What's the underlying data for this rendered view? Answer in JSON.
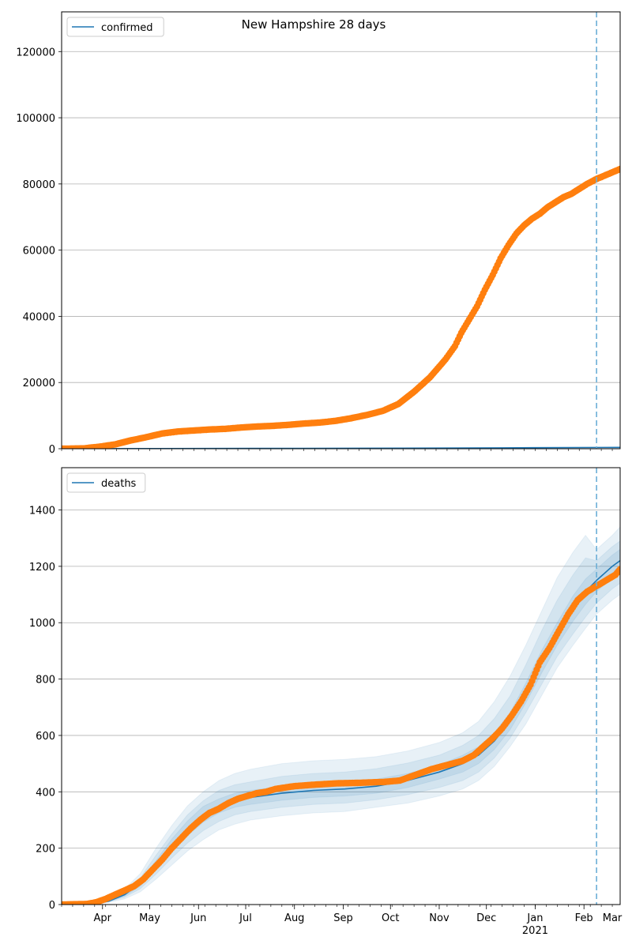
{
  "title": "New Hampshire 28 days",
  "colors": {
    "model": "#1f77b4",
    "observed": "#ff7f0e",
    "band": "#c6dbef",
    "grid": "#b0b0b0",
    "forecast_line": "#6baed6"
  },
  "chart_data": [
    {
      "type": "line",
      "id": "confirmed",
      "legend": "confirmed",
      "legend_position": "top-left",
      "ylim": [
        0,
        132000
      ],
      "yticks": [
        0,
        20000,
        40000,
        60000,
        80000,
        100000,
        120000
      ],
      "xlim": [
        0,
        355
      ],
      "xlabels_shown": false,
      "forecast_start_day": 340,
      "model_line": {
        "x": [
          0,
          60,
          120,
          180,
          240,
          300,
          355
        ],
        "y": [
          0,
          50,
          100,
          150,
          200,
          300,
          400
        ]
      },
      "observed": {
        "x": [
          0,
          14,
          24,
          34,
          44,
          54,
          64,
          74,
          84,
          94,
          104,
          114,
          124,
          134,
          144,
          154,
          164,
          174,
          184,
          194,
          204,
          214,
          224,
          234,
          244,
          250,
          254,
          259,
          264,
          269,
          274,
          279,
          284,
          289,
          294,
          299,
          304,
          309,
          314,
          319,
          324,
          329,
          334,
          340,
          345,
          350,
          355
        ],
        "y": [
          0,
          100,
          600,
          1300,
          2500,
          3500,
          4600,
          5200,
          5500,
          5800,
          6000,
          6400,
          6700,
          6900,
          7200,
          7600,
          7900,
          8400,
          9200,
          10200,
          11400,
          13500,
          17200,
          21500,
          27000,
          31000,
          35000,
          39000,
          43000,
          48000,
          52500,
          57500,
          61500,
          65000,
          67500,
          69500,
          71000,
          73000,
          74500,
          76000,
          77000,
          78500,
          80000,
          81500,
          82500,
          83500,
          84500
        ]
      }
    },
    {
      "type": "line",
      "id": "deaths",
      "legend": "deaths",
      "legend_position": "top-left",
      "ylim": [
        0,
        1550
      ],
      "yticks": [
        0,
        200,
        400,
        600,
        800,
        1000,
        1200,
        1400
      ],
      "xlim": [
        0,
        355
      ],
      "xtick_labels": [
        {
          "day": 26,
          "label": "Apr"
        },
        {
          "day": 56,
          "label": "May"
        },
        {
          "day": 87,
          "label": "Jun"
        },
        {
          "day": 117,
          "label": "Jul"
        },
        {
          "day": 148,
          "label": "Aug"
        },
        {
          "day": 179,
          "label": "Sep"
        },
        {
          "day": 209,
          "label": "Oct"
        },
        {
          "day": 240,
          "label": "Nov"
        },
        {
          "day": 270,
          "label": "Dec"
        },
        {
          "day": 301,
          "label": "Jan"
        },
        {
          "day": 332,
          "label": "Feb"
        },
        {
          "day": 360,
          "label": "Mar"
        }
      ],
      "year_label": {
        "day": 301,
        "label": "2021"
      },
      "forecast_start_day": 340,
      "model_line": {
        "x": [
          0,
          20,
          30,
          40,
          50,
          60,
          70,
          80,
          90,
          100,
          110,
          120,
          140,
          160,
          180,
          200,
          220,
          240,
          255,
          265,
          275,
          285,
          295,
          305,
          315,
          325,
          333,
          340,
          350,
          355
        ],
        "y": [
          0,
          2,
          12,
          35,
          75,
          140,
          210,
          270,
          320,
          350,
          370,
          380,
          395,
          405,
          410,
          420,
          440,
          470,
          500,
          530,
          580,
          650,
          750,
          860,
          960,
          1050,
          1110,
          1150,
          1200,
          1220
        ]
      },
      "model_bands": [
        {
          "x": [
            0,
            20,
            30,
            40,
            50,
            60,
            70,
            80,
            90,
            100,
            110,
            120,
            140,
            160,
            180,
            200,
            220,
            240,
            255,
            265,
            275,
            285,
            295,
            305,
            315,
            325,
            333,
            340,
            350,
            355
          ],
          "low": [
            0,
            0,
            8,
            20,
            45,
            90,
            140,
            190,
            230,
            265,
            285,
            300,
            315,
            325,
            330,
            345,
            360,
            385,
            410,
            440,
            490,
            560,
            640,
            740,
            840,
            920,
            980,
            1030,
            1080,
            1100
          ],
          "high": [
            0,
            4,
            20,
            55,
            110,
            200,
            280,
            350,
            400,
            440,
            465,
            480,
            500,
            510,
            515,
            525,
            545,
            575,
            610,
            650,
            720,
            810,
            920,
            1040,
            1160,
            1250,
            1310,
            1260,
            1310,
            1340
          ]
        },
        {
          "x": [
            0,
            20,
            30,
            40,
            50,
            60,
            70,
            80,
            90,
            100,
            110,
            120,
            140,
            160,
            180,
            200,
            220,
            240,
            255,
            265,
            275,
            285,
            295,
            305,
            315,
            325,
            333,
            340,
            350,
            355
          ],
          "low": [
            0,
            1,
            10,
            26,
            56,
            108,
            165,
            218,
            262,
            295,
            318,
            330,
            345,
            355,
            360,
            372,
            390,
            415,
            440,
            470,
            520,
            590,
            680,
            780,
            880,
            960,
            1020,
            1070,
            1120,
            1140
          ],
          "high": [
            0,
            3,
            16,
            46,
            95,
            175,
            250,
            318,
            368,
            405,
            425,
            435,
            455,
            465,
            470,
            482,
            502,
            530,
            565,
            600,
            660,
            740,
            850,
            970,
            1080,
            1170,
            1230,
            1220,
            1270,
            1290
          ]
        },
        {
          "x": [
            0,
            20,
            30,
            40,
            50,
            60,
            70,
            80,
            90,
            100,
            110,
            120,
            140,
            160,
            180,
            200,
            220,
            240,
            255,
            265,
            275,
            285,
            295,
            305,
            315,
            325,
            333,
            340,
            350,
            355
          ],
          "low": [
            0,
            1,
            11,
            30,
            65,
            124,
            188,
            244,
            292,
            325,
            345,
            355,
            370,
            380,
            385,
            395,
            415,
            445,
            470,
            500,
            550,
            620,
            715,
            820,
            920,
            1005,
            1065,
            1110,
            1160,
            1180
          ],
          "high": [
            0,
            3,
            14,
            40,
            85,
            156,
            232,
            296,
            348,
            375,
            395,
            405,
            420,
            430,
            435,
            445,
            465,
            495,
            530,
            560,
            610,
            680,
            785,
            900,
            1000,
            1095,
            1155,
            1190,
            1240,
            1260
          ]
        }
      ],
      "observed": {
        "x": [
          0,
          16,
          22,
          28,
          34,
          40,
          46,
          52,
          58,
          64,
          70,
          76,
          82,
          88,
          94,
          100,
          106,
          112,
          118,
          124,
          130,
          136,
          142,
          148,
          160,
          175,
          190,
          205,
          215,
          225,
          235,
          245,
          255,
          262,
          268,
          274,
          280,
          286,
          292,
          298,
          304,
          310,
          316,
          322,
          328,
          334,
          340,
          346,
          352,
          355
        ],
        "y": [
          0,
          2,
          8,
          20,
          35,
          50,
          65,
          90,
          125,
          160,
          200,
          235,
          270,
          300,
          325,
          340,
          360,
          375,
          385,
          395,
          400,
          410,
          415,
          420,
          425,
          430,
          432,
          435,
          440,
          460,
          480,
          495,
          510,
          530,
          560,
          590,
          625,
          670,
          720,
          780,
          860,
          910,
          970,
          1030,
          1080,
          1110,
          1130,
          1150,
          1170,
          1190
        ]
      }
    }
  ]
}
